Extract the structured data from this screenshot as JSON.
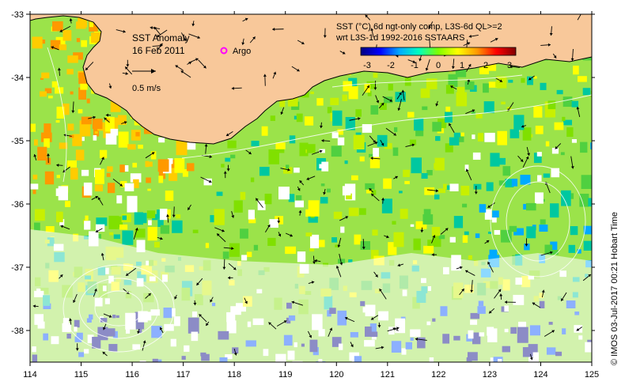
{
  "title": {
    "main": "SST Anomaly",
    "date": "16 Feb 2011",
    "argo_label": "Argo",
    "scale_label": "0.5 m/s"
  },
  "colorbar": {
    "caption_line1": "SST (°C) 6d ngt-only comp, L3S-6d QL>=2",
    "caption_line2": "wrt L3S-1d 1992-2016 SSTAARS",
    "ticks": [
      "-3",
      "-2",
      "-1",
      "0",
      "1",
      "2",
      "3"
    ],
    "stops": [
      "#000080",
      "#0000ff",
      "#00aaff",
      "#00ffc0",
      "#80ff00",
      "#ffff00",
      "#ff9900",
      "#ff0000",
      "#800000"
    ]
  },
  "axes": {
    "lon_ticks": [
      "114",
      "115",
      "116",
      "117",
      "118",
      "119",
      "120",
      "121",
      "122",
      "123",
      "124",
      "125"
    ],
    "lat_ticks": [
      "-33",
      "-34",
      "-35",
      "-36",
      "-37",
      "-38"
    ]
  },
  "credit": "© IMOS 03-Jul-2017 00:21 Hobart Time",
  "colors": {
    "land": "#f8c89a",
    "coast": "#000000",
    "nodata": "#ffffff",
    "argo": "#ff00ff"
  }
}
